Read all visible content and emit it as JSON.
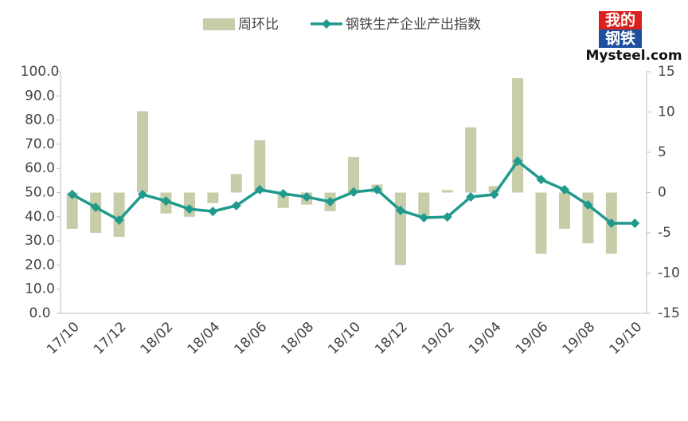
{
  "chart_data": {
    "type": "bar-line",
    "logo": {
      "top": "我的",
      "middle": "钢铁",
      "bottom": "Mysteel.com"
    },
    "categories": [
      "17/10",
      null,
      "17/12",
      null,
      "18/02",
      null,
      "18/04",
      null,
      "18/06",
      null,
      "18/08",
      null,
      "18/10",
      null,
      "18/12",
      null,
      "19/02",
      null,
      "19/04",
      null,
      "19/06",
      null,
      "19/08",
      null,
      "19/10"
    ],
    "series": [
      {
        "name": "周环比",
        "type": "bar",
        "axis": "y2",
        "color": "#c7cda9",
        "values": [
          -4.5,
          -5.0,
          -5.5,
          10.1,
          -2.6,
          -3.0,
          -1.3,
          2.3,
          6.5,
          -1.9,
          -1.5,
          -2.3,
          4.4,
          1.0,
          -9.0,
          -2.9,
          0.3,
          8.1,
          0.8,
          14.2,
          -7.6,
          -4.5,
          -6.3,
          -7.6,
          null
        ]
      },
      {
        "name": "钢铁生产企业产出指数",
        "type": "line",
        "axis": "y",
        "color": "#1f9a8c",
        "values": [
          49.2,
          43.9,
          38.6,
          49.2,
          46.5,
          43.2,
          42.2,
          44.6,
          51.2,
          49.5,
          48.2,
          46.2,
          50.2,
          51.2,
          42.6,
          39.6,
          39.9,
          48.2,
          49.2,
          63.0,
          55.4,
          51.2,
          44.9,
          37.3,
          37.3
        ]
      }
    ],
    "ylim": [
      0,
      100
    ],
    "yticks": [
      {
        "value": 0,
        "label": "0.0"
      },
      {
        "value": 10,
        "label": "10.0"
      },
      {
        "value": 20,
        "label": "20.0"
      },
      {
        "value": 30,
        "label": "30.0"
      },
      {
        "value": 40,
        "label": "40.0"
      },
      {
        "value": 50,
        "label": "50.0"
      },
      {
        "value": 60,
        "label": "60.0"
      },
      {
        "value": 70,
        "label": "70.0"
      },
      {
        "value": 80,
        "label": "80.0"
      },
      {
        "value": 90,
        "label": "90.0"
      },
      {
        "value": 100,
        "label": "100.0"
      }
    ],
    "y2lim": [
      -15,
      15
    ],
    "y2ticks": [
      -15,
      -10,
      -5,
      0,
      5,
      10,
      15
    ],
    "legend": "top"
  }
}
